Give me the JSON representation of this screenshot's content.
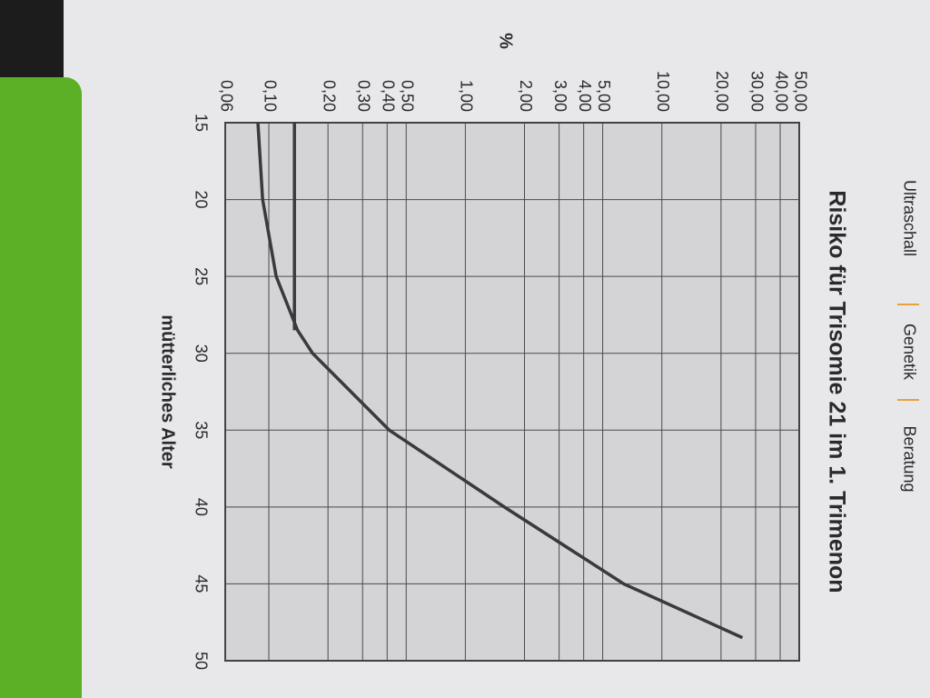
{
  "nav_tabs": [
    "Ultraschall",
    "Genetik",
    "Beratung"
  ],
  "chart_data": {
    "type": "line",
    "title": "Risiko für Trisomie 21 im 1. Trimenon",
    "x_label": "mütterliches Alter",
    "y_label": "%",
    "log_y": true,
    "grid": true,
    "series": [
      {
        "color": "#3a3a3c",
        "x": [
          15,
          20,
          25,
          28.5,
          30,
          35,
          40,
          45,
          48.5
        ],
        "values": [
          0.088,
          0.093,
          0.109,
          0.14,
          0.167,
          0.41,
          1.58,
          6.4,
          25.7
        ]
      },
      {
        "color": "#3a3a3c",
        "x": [
          15,
          28.5
        ],
        "values": [
          0.135,
          0.135
        ]
      }
    ],
    "xlim": [
      15,
      50
    ],
    "xticks": [
      15,
      20,
      25,
      30,
      35,
      40,
      45,
      50
    ],
    "ylim": [
      0.06,
      50
    ],
    "yticks": [
      {
        "value": 0.06,
        "label": "0,06"
      },
      {
        "value": 0.1,
        "label": "0,10"
      },
      {
        "value": 0.2,
        "label": "0,20"
      },
      {
        "value": 0.3,
        "label": "0,30"
      },
      {
        "value": 0.4,
        "label": "0,40"
      },
      {
        "value": 0.5,
        "label": "0,50"
      },
      {
        "value": 1,
        "label": "1,00"
      },
      {
        "value": 2,
        "label": "2,00"
      },
      {
        "value": 3,
        "label": "3,00"
      },
      {
        "value": 4,
        "label": "4,00"
      },
      {
        "value": 5,
        "label": "5,00"
      },
      {
        "value": 10,
        "label": "10,00"
      },
      {
        "value": 20,
        "label": "20,00"
      },
      {
        "value": 30,
        "label": "30,00"
      },
      {
        "value": 40,
        "label": "40,00"
      },
      {
        "value": 50,
        "label": "50,00"
      }
    ]
  }
}
